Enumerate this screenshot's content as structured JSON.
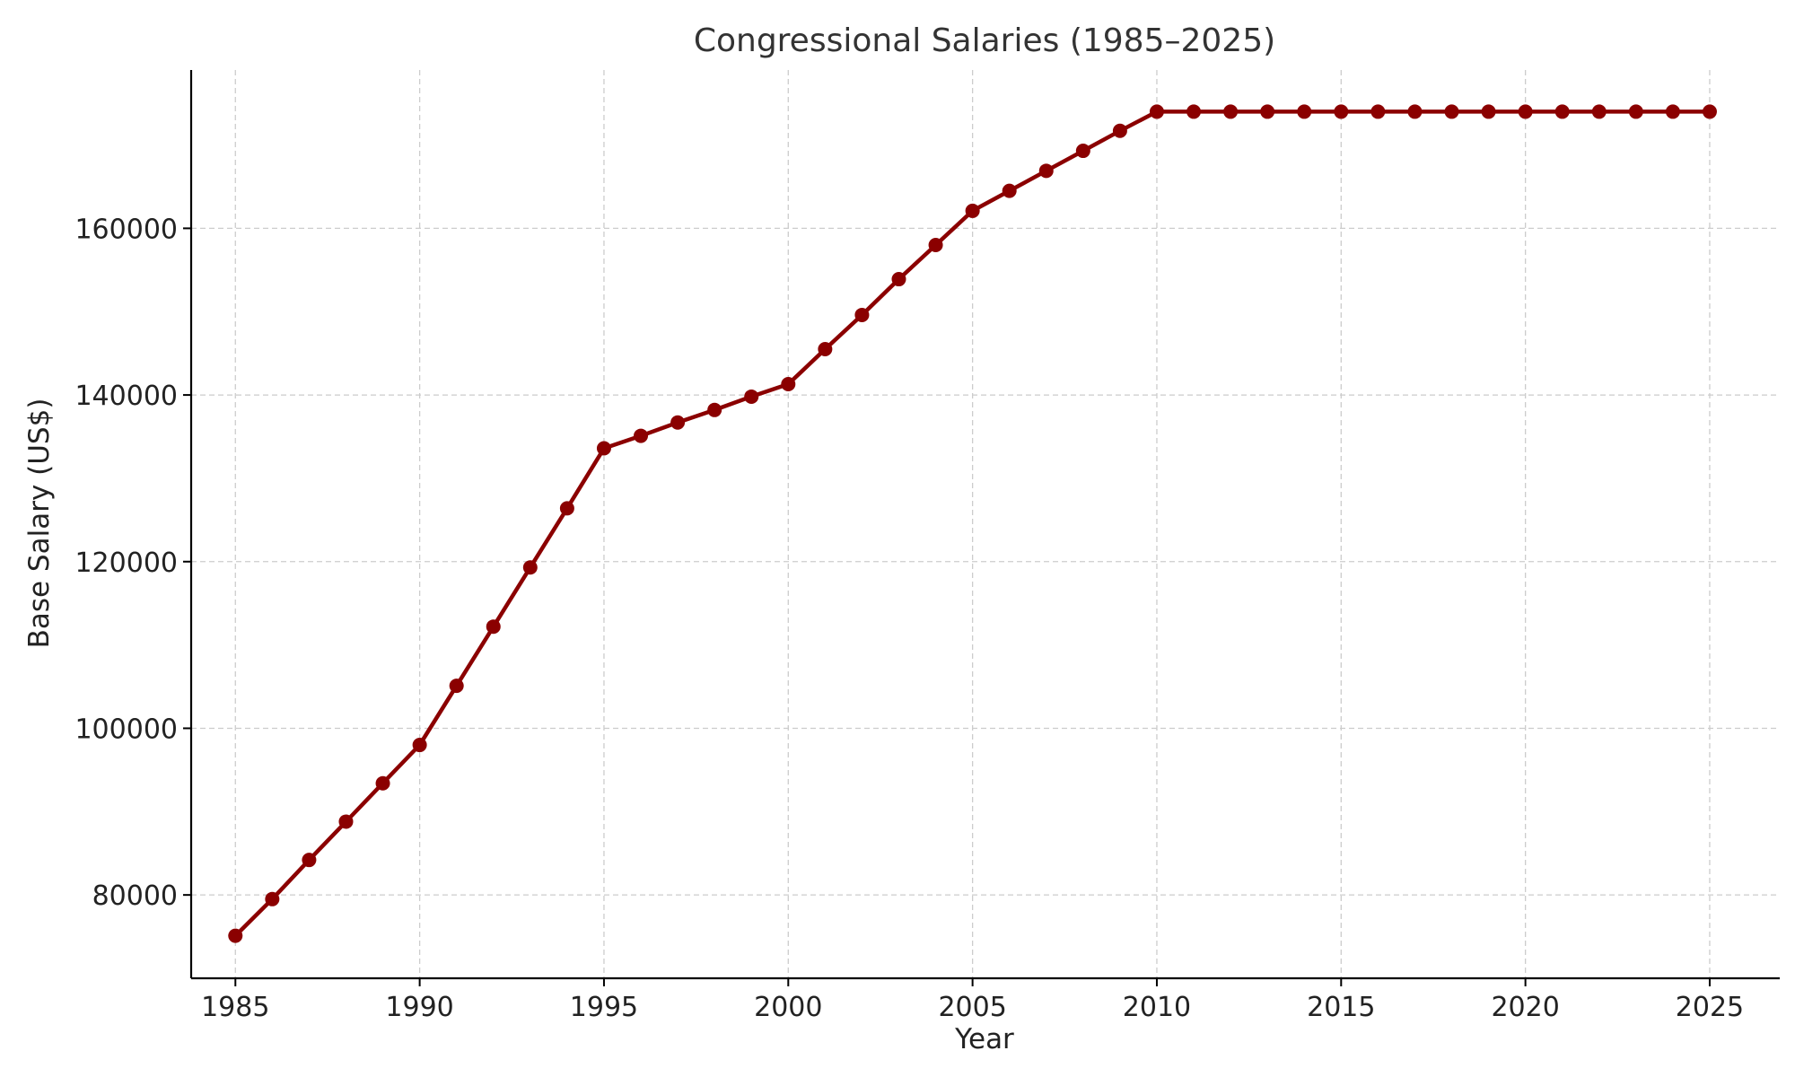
{
  "chart_data": {
    "type": "line",
    "title": "Congressional Salaries (1985–2025)",
    "xlabel": "Year",
    "ylabel": "Base Salary (US$)",
    "xlim": [
      1983.8,
      2026.9
    ],
    "ylim": [
      70000,
      179000
    ],
    "grid": true,
    "x_ticks": [
      1985,
      1990,
      1995,
      2000,
      2005,
      2010,
      2015,
      2020,
      2025
    ],
    "y_ticks": [
      80000,
      100000,
      120000,
      140000,
      160000
    ],
    "line_color": "#8b0000",
    "series": [
      {
        "name": "Base Salary",
        "x": [
          1985,
          1986,
          1987,
          1988,
          1989,
          1990,
          1991,
          1992,
          1993,
          1994,
          1995,
          1996,
          1997,
          1998,
          1999,
          2000,
          2001,
          2002,
          2003,
          2004,
          2005,
          2006,
          2007,
          2008,
          2009,
          2010,
          2011,
          2012,
          2013,
          2014,
          2015,
          2016,
          2017,
          2018,
          2019,
          2020,
          2021,
          2022,
          2023,
          2024,
          2025
        ],
        "values": [
          75100,
          79500,
          84200,
          88800,
          93400,
          98000,
          105100,
          112200,
          119300,
          126400,
          133600,
          135100,
          136700,
          138200,
          139800,
          141300,
          145500,
          149600,
          153900,
          158000,
          162100,
          164500,
          166900,
          169300,
          171700,
          174000,
          174000,
          174000,
          174000,
          174000,
          174000,
          174000,
          174000,
          174000,
          174000,
          174000,
          174000,
          174000,
          174000,
          174000,
          174000
        ]
      }
    ]
  }
}
